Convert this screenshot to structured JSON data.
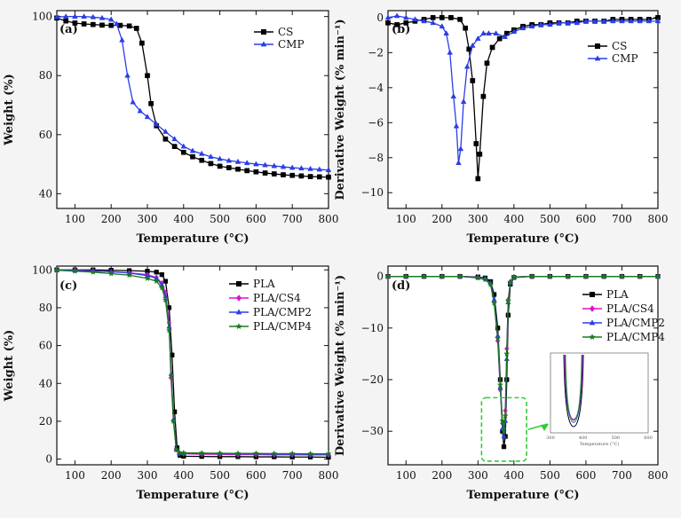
{
  "figure": {
    "background": "#f4f4f4",
    "highlight_color": "#33cc33"
  },
  "chart_data": [
    {
      "panel_label": "(a)",
      "type": "line",
      "xlabel": "Temperature (°C)",
      "ylabel": "Weight (%)",
      "xlim": [
        50,
        800
      ],
      "ylim": [
        35,
        102
      ],
      "x_ticks": [
        100,
        200,
        300,
        400,
        500,
        600,
        700,
        800
      ],
      "y_ticks": [
        40,
        60,
        80,
        100
      ],
      "legend_position": "top-right",
      "series": [
        {
          "name": "CS",
          "color": "#000000",
          "marker": "square",
          "x": [
            50,
            75,
            100,
            125,
            150,
            175,
            200,
            225,
            250,
            270,
            285,
            300,
            310,
            325,
            350,
            375,
            400,
            425,
            450,
            475,
            500,
            525,
            550,
            575,
            600,
            625,
            650,
            675,
            700,
            725,
            750,
            775,
            800
          ],
          "y": [
            99.5,
            98.5,
            97.8,
            97.5,
            97.3,
            97.1,
            97.0,
            97.0,
            96.8,
            96.0,
            91.0,
            80.0,
            70.5,
            63.0,
            58.5,
            56.0,
            54.0,
            52.5,
            51.3,
            50.2,
            49.3,
            48.8,
            48.3,
            47.8,
            47.4,
            47.0,
            46.7,
            46.4,
            46.2,
            46.0,
            45.8,
            45.7,
            45.6
          ]
        },
        {
          "name": "CMP",
          "color": "#2a3ee8",
          "marker": "triangle",
          "x": [
            50,
            75,
            100,
            125,
            150,
            175,
            200,
            215,
            230,
            245,
            260,
            280,
            300,
            325,
            350,
            375,
            400,
            425,
            450,
            475,
            500,
            525,
            550,
            575,
            600,
            625,
            650,
            675,
            700,
            725,
            750,
            775,
            800
          ],
          "y": [
            99.8,
            100.0,
            100.0,
            100.0,
            99.8,
            99.5,
            99.0,
            97.5,
            92.0,
            80.0,
            71.0,
            68.0,
            66.0,
            63.5,
            61.0,
            58.5,
            56.0,
            54.5,
            53.5,
            52.5,
            51.8,
            51.2,
            50.8,
            50.4,
            50.0,
            49.7,
            49.4,
            49.1,
            48.8,
            48.6,
            48.4,
            48.2,
            48.0
          ]
        }
      ]
    },
    {
      "panel_label": "(b)",
      "type": "line",
      "xlabel": "Temperature (°C)",
      "ylabel": "Derivative Weight (% min⁻¹)",
      "xlim": [
        50,
        800
      ],
      "ylim": [
        -10.9,
        0.4
      ],
      "x_ticks": [
        100,
        200,
        300,
        400,
        500,
        600,
        700,
        800
      ],
      "y_ticks": [
        -10,
        -8,
        -6,
        -4,
        -2,
        0
      ],
      "legend_position": "top-right",
      "series": [
        {
          "name": "CS",
          "color": "#000000",
          "marker": "square",
          "x": [
            50,
            75,
            100,
            125,
            150,
            175,
            200,
            225,
            250,
            265,
            275,
            285,
            295,
            300,
            305,
            315,
            325,
            340,
            360,
            380,
            400,
            425,
            450,
            475,
            500,
            525,
            550,
            575,
            600,
            625,
            650,
            675,
            700,
            725,
            750,
            775,
            800
          ],
          "y": [
            -0.3,
            -0.4,
            -0.3,
            -0.2,
            -0.1,
            0.0,
            0.0,
            0.0,
            -0.1,
            -0.6,
            -1.8,
            -3.6,
            -7.2,
            -9.2,
            -7.8,
            -4.5,
            -2.6,
            -1.7,
            -1.2,
            -0.9,
            -0.7,
            -0.5,
            -0.4,
            -0.4,
            -0.3,
            -0.3,
            -0.3,
            -0.2,
            -0.2,
            -0.2,
            -0.2,
            -0.1,
            -0.1,
            -0.1,
            -0.1,
            -0.1,
            0.0
          ]
        },
        {
          "name": "CMP",
          "color": "#2a3ee8",
          "marker": "triangle",
          "x": [
            50,
            75,
            100,
            125,
            150,
            175,
            200,
            212,
            222,
            232,
            240,
            246,
            252,
            260,
            270,
            285,
            300,
            315,
            330,
            350,
            375,
            400,
            425,
            450,
            475,
            500,
            525,
            550,
            575,
            600,
            625,
            650,
            675,
            700,
            725,
            750,
            775,
            800
          ],
          "y": [
            0.0,
            0.1,
            0.0,
            -0.1,
            -0.2,
            -0.3,
            -0.5,
            -0.9,
            -2.0,
            -4.5,
            -6.2,
            -8.3,
            -7.5,
            -4.8,
            -2.8,
            -1.6,
            -1.2,
            -0.9,
            -0.9,
            -0.9,
            -1.1,
            -0.8,
            -0.6,
            -0.5,
            -0.4,
            -0.4,
            -0.3,
            -0.3,
            -0.3,
            -0.2,
            -0.2,
            -0.2,
            -0.2,
            -0.2,
            -0.2,
            -0.2,
            -0.2,
            -0.2
          ]
        }
      ]
    },
    {
      "panel_label": "(c)",
      "type": "line",
      "xlabel": "Temperature (°C)",
      "ylabel": "Weight (%)",
      "xlim": [
        50,
        800
      ],
      "ylim": [
        -3,
        102
      ],
      "x_ticks": [
        100,
        200,
        300,
        400,
        500,
        600,
        700,
        800
      ],
      "y_ticks": [
        0,
        20,
        40,
        60,
        80,
        100
      ],
      "legend_position": "top-right",
      "series": [
        {
          "name": "PLA",
          "color": "#000000",
          "marker": "square",
          "x": [
            50,
            100,
            150,
            200,
            250,
            300,
            325,
            340,
            350,
            360,
            368,
            375,
            382,
            390,
            400,
            450,
            500,
            550,
            600,
            650,
            700,
            750,
            800
          ],
          "y": [
            100.0,
            100.0,
            100.0,
            99.8,
            99.6,
            99.3,
            98.8,
            97.5,
            94.0,
            80.0,
            55.0,
            25.0,
            6.0,
            2.0,
            1.5,
            1.4,
            1.3,
            1.3,
            1.2,
            1.2,
            1.1,
            1.1,
            1.0
          ]
        },
        {
          "name": "PLA/CS4",
          "color": "#e010c8",
          "marker": "diamond",
          "x": [
            50,
            100,
            150,
            200,
            250,
            300,
            325,
            340,
            350,
            360,
            365,
            372,
            380,
            388,
            400,
            450,
            500,
            550,
            600,
            650,
            700,
            750,
            800
          ],
          "y": [
            100.0,
            99.8,
            99.5,
            99.0,
            98.5,
            97.5,
            96.0,
            93.0,
            88.0,
            72.0,
            43.0,
            20.0,
            5.0,
            3.0,
            2.8,
            2.6,
            2.5,
            2.4,
            2.4,
            2.3,
            2.3,
            2.2,
            2.2
          ]
        },
        {
          "name": "PLA/CMP2",
          "color": "#2a3ee8",
          "marker": "triangle",
          "x": [
            50,
            100,
            150,
            200,
            250,
            300,
            325,
            340,
            350,
            360,
            366,
            372,
            380,
            388,
            400,
            450,
            500,
            550,
            600,
            650,
            700,
            750,
            800
          ],
          "y": [
            100.0,
            99.7,
            99.4,
            99.0,
            98.3,
            97.0,
            95.5,
            92.0,
            86.0,
            70.0,
            45.0,
            21.0,
            5.0,
            3.2,
            3.0,
            2.9,
            2.8,
            2.7,
            2.7,
            2.6,
            2.6,
            2.5,
            2.5
          ]
        },
        {
          "name": "PLA/CMP4",
          "color": "#1a7a1a",
          "marker": "star",
          "x": [
            50,
            100,
            150,
            200,
            250,
            300,
            325,
            340,
            350,
            360,
            366,
            372,
            380,
            388,
            400,
            450,
            500,
            550,
            600,
            650,
            700,
            750,
            800
          ],
          "y": [
            99.8,
            99.3,
            98.8,
            98.0,
            97.2,
            95.5,
            94.0,
            90.5,
            84.0,
            68.0,
            44.0,
            20.0,
            5.0,
            3.5,
            3.3,
            3.2,
            3.1,
            3.0,
            3.0,
            2.9,
            2.9,
            2.8,
            2.8
          ]
        }
      ]
    },
    {
      "panel_label": "(d)",
      "type": "line",
      "xlabel": "Temperature (°C)",
      "ylabel": "Derivative Weight (% min⁻¹)",
      "xlim": [
        50,
        800
      ],
      "ylim": [
        -36.5,
        2.0
      ],
      "x_ticks": [
        100,
        200,
        300,
        400,
        500,
        600,
        700,
        800
      ],
      "y_ticks": [
        -30,
        -20,
        -10,
        0
      ],
      "legend_position": "top-right",
      "series": [
        {
          "name": "PLA",
          "color": "#000000",
          "marker": "square",
          "x": [
            50,
            100,
            150,
            200,
            250,
            300,
            320,
            335,
            345,
            355,
            362,
            368,
            372,
            376,
            380,
            384,
            390,
            400,
            450,
            500,
            550,
            600,
            650,
            700,
            750,
            800
          ],
          "y": [
            0.0,
            0.0,
            0.0,
            0.0,
            0.0,
            -0.1,
            -0.3,
            -1.0,
            -3.5,
            -10.0,
            -20.0,
            -30.0,
            -33.0,
            -31.0,
            -20.0,
            -7.5,
            -1.5,
            -0.2,
            0.0,
            0.0,
            0.0,
            0.0,
            0.0,
            0.0,
            0.0,
            0.0
          ]
        },
        {
          "name": "PLA/CS4",
          "color": "#e010c8",
          "marker": "diamond",
          "x": [
            50,
            100,
            150,
            200,
            250,
            300,
            320,
            335,
            345,
            355,
            362,
            368,
            372,
            376,
            380,
            384,
            390,
            400,
            450,
            500,
            550,
            600,
            650,
            700,
            750,
            800
          ],
          "y": [
            0.0,
            0.0,
            0.0,
            0.0,
            0.0,
            -0.2,
            -0.5,
            -1.5,
            -5.0,
            -12.5,
            -22.0,
            -28.5,
            -29.5,
            -26.0,
            -14.0,
            -4.5,
            -1.0,
            -0.1,
            0.0,
            0.0,
            0.0,
            0.0,
            0.0,
            0.0,
            0.0,
            0.0
          ]
        },
        {
          "name": "PLA/CMP2",
          "color": "#2a3ee8",
          "marker": "triangle",
          "x": [
            50,
            100,
            150,
            200,
            250,
            300,
            320,
            335,
            345,
            355,
            362,
            368,
            372,
            376,
            380,
            384,
            390,
            400,
            450,
            500,
            550,
            600,
            650,
            700,
            750,
            800
          ],
          "y": [
            0.0,
            0.0,
            0.0,
            0.0,
            0.0,
            -0.2,
            -0.4,
            -1.3,
            -4.5,
            -11.5,
            -21.5,
            -29.5,
            -31.0,
            -28.0,
            -16.0,
            -5.0,
            -1.2,
            -0.1,
            0.0,
            0.0,
            0.0,
            0.0,
            0.0,
            0.0,
            0.0,
            0.0
          ]
        },
        {
          "name": "PLA/CMP4",
          "color": "#1a7a1a",
          "marker": "star",
          "x": [
            50,
            100,
            150,
            200,
            250,
            300,
            320,
            335,
            345,
            355,
            362,
            368,
            372,
            376,
            380,
            384,
            390,
            400,
            450,
            500,
            550,
            600,
            650,
            700,
            750,
            800
          ],
          "y": [
            0.0,
            0.0,
            0.0,
            0.0,
            0.0,
            -0.3,
            -0.6,
            -1.6,
            -5.2,
            -12.0,
            -21.0,
            -28.0,
            -30.0,
            -27.0,
            -15.0,
            -4.8,
            -1.1,
            -0.1,
            0.0,
            0.0,
            0.0,
            0.0,
            0.0,
            0.0,
            0.0,
            0.0
          ]
        }
      ],
      "inset": {
        "xlabel": "Temperature (°C)",
        "x_ticks": [
          300,
          400,
          500,
          600
        ],
        "xlim": [
          300,
          600
        ],
        "ylim": [
          -36,
          2
        ],
        "peak_depths": [
          -33.0,
          -29.5,
          -31.0,
          -30.0
        ]
      }
    }
  ]
}
